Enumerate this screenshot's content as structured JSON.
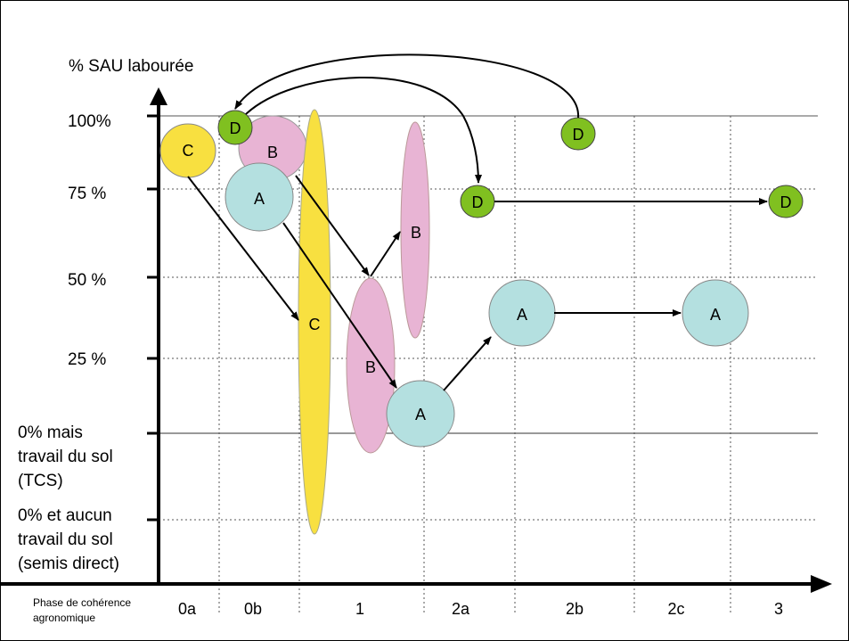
{
  "colors": {
    "A": "#b4e0e0",
    "B": "#e8b4d4",
    "C": "#f8e040",
    "D": "#80c020"
  },
  "y_axis": {
    "title": "% SAU labourée",
    "levels": [
      {
        "id": "100",
        "lines": [
          "100%"
        ]
      },
      {
        "id": "75",
        "lines": [
          "75 %"
        ]
      },
      {
        "id": "50",
        "lines": [
          "50 %"
        ]
      },
      {
        "id": "25",
        "lines": [
          "25 %"
        ]
      },
      {
        "id": "tcs",
        "lines": [
          "0% mais",
          "travail du sol",
          "(TCS)"
        ]
      },
      {
        "id": "sd",
        "lines": [
          "0% et aucun",
          "travail du sol",
          "(semis direct)"
        ]
      }
    ]
  },
  "x_axis": {
    "title_lines": [
      "Phase de cohérence",
      "agronomique"
    ],
    "phases": [
      "0a",
      "0b",
      "1",
      "2a",
      "2b",
      "2c",
      "3"
    ]
  },
  "nodes": [
    {
      "id": "C0",
      "label": "C",
      "group": "C"
    },
    {
      "id": "D0",
      "label": "D",
      "group": "D"
    },
    {
      "id": "B0",
      "label": "B",
      "group": "B"
    },
    {
      "id": "A0",
      "label": "A",
      "group": "A"
    },
    {
      "id": "C1",
      "label": "C",
      "group": "C"
    },
    {
      "id": "B1",
      "label": "B",
      "group": "B"
    },
    {
      "id": "B2",
      "label": "B",
      "group": "B"
    },
    {
      "id": "A1",
      "label": "A",
      "group": "A"
    },
    {
      "id": "D1",
      "label": "D",
      "group": "D"
    },
    {
      "id": "D2",
      "label": "D",
      "group": "D"
    },
    {
      "id": "D3",
      "label": "D",
      "group": "D"
    },
    {
      "id": "A2",
      "label": "A",
      "group": "A"
    },
    {
      "id": "A3",
      "label": "A",
      "group": "A"
    }
  ]
}
